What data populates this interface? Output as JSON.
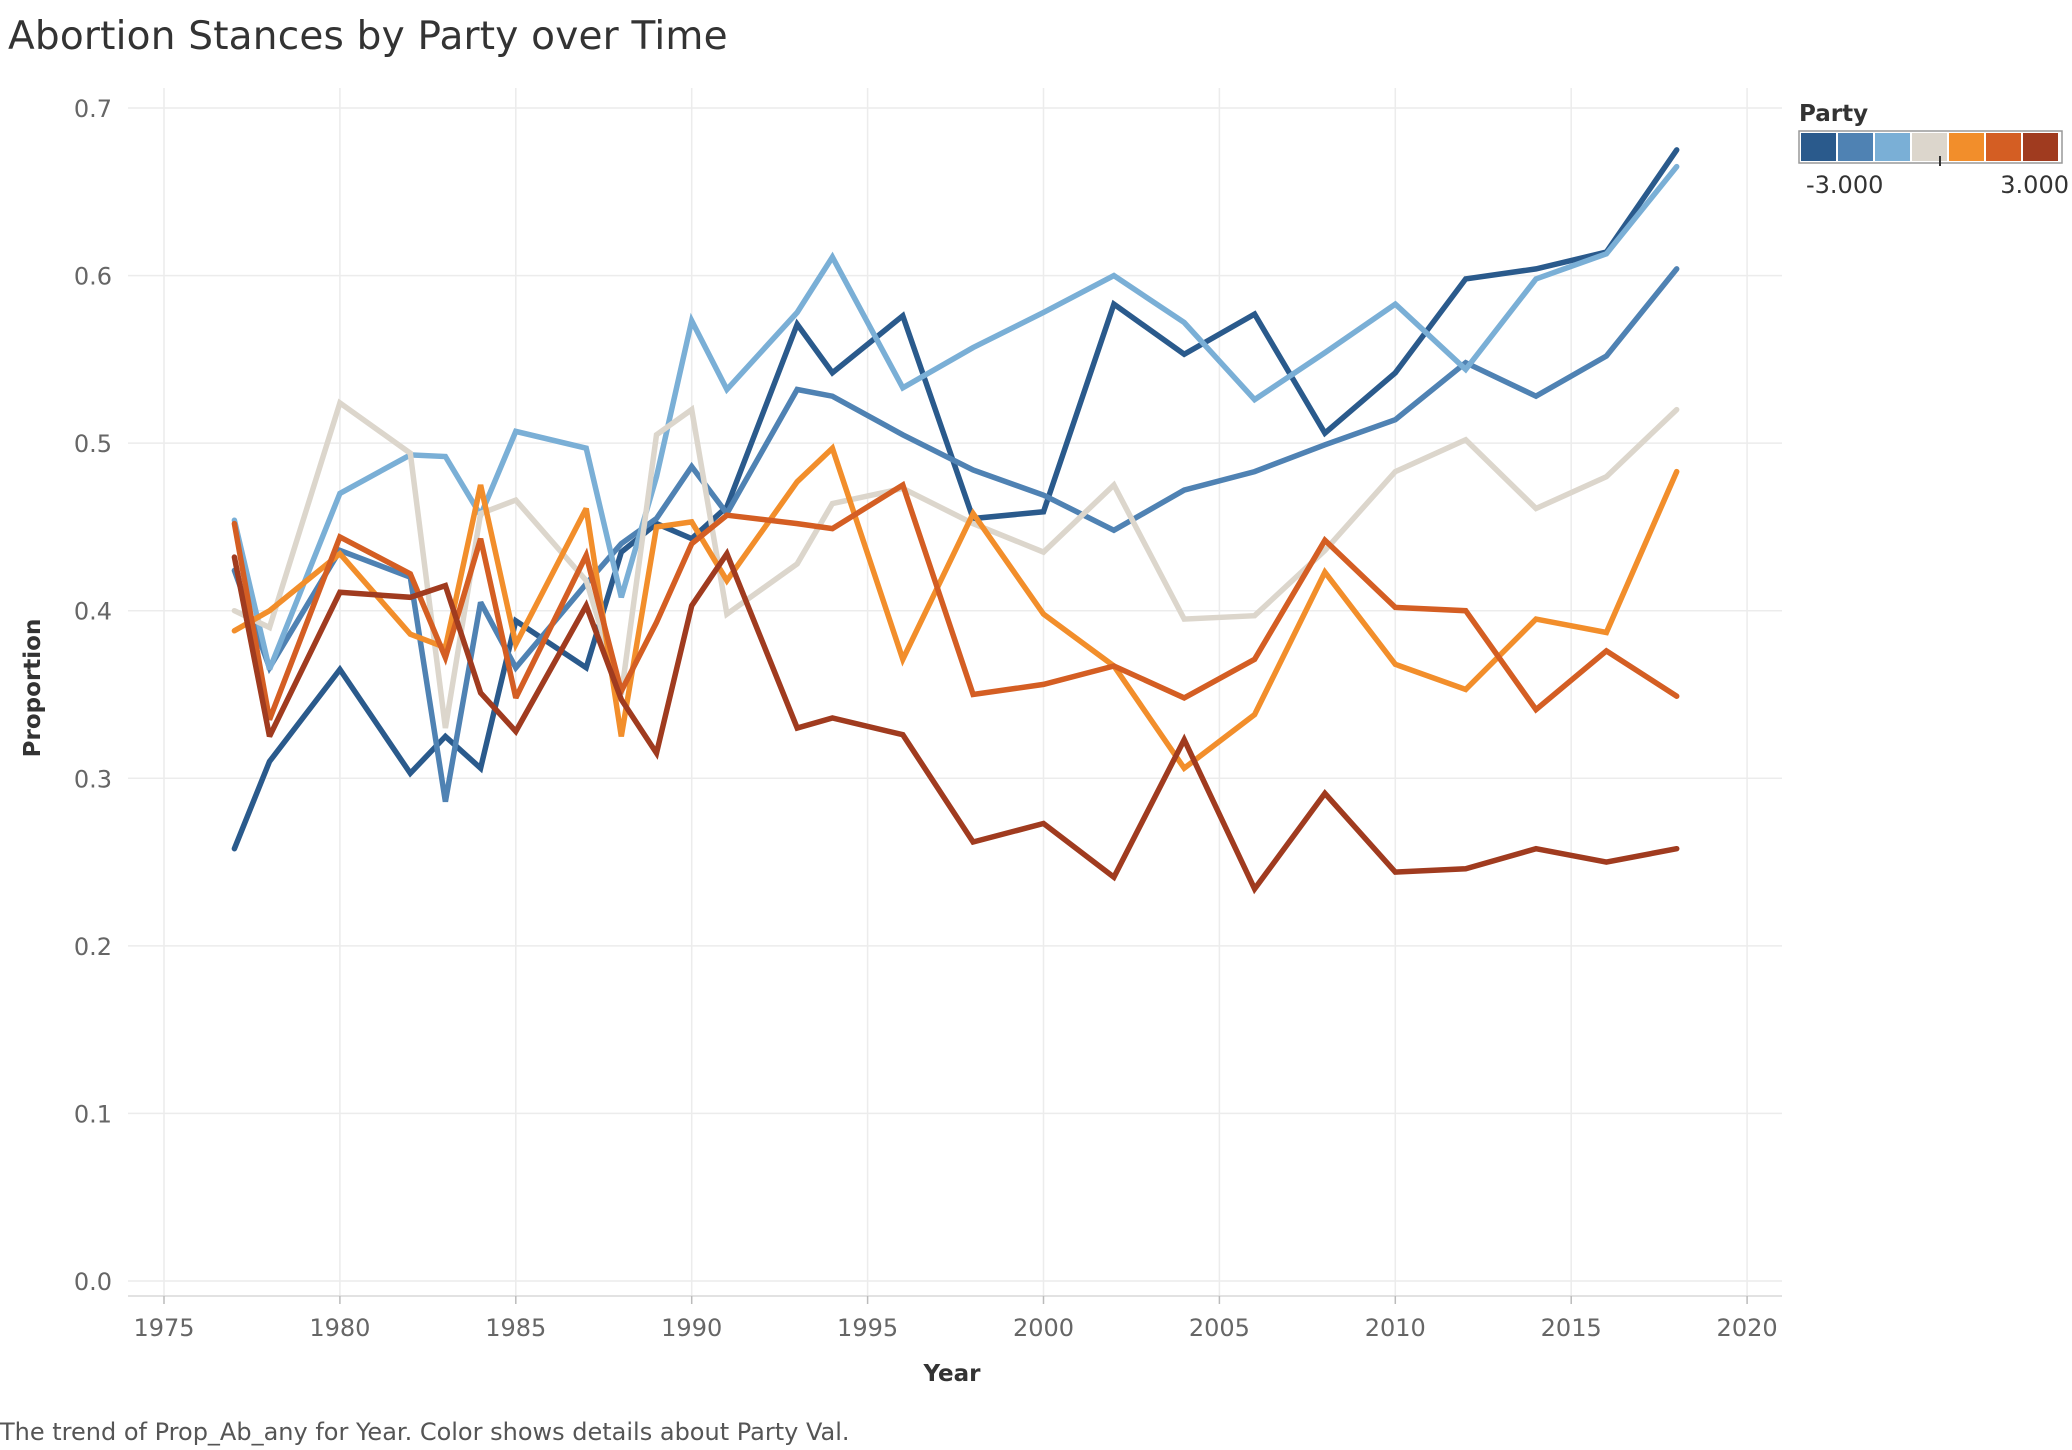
{
  "title": "Abortion Stances by Party over Time",
  "caption": "The trend of Prop_Ab_any for Year.  Color shows details about Party Val.",
  "chart_data": {
    "type": "line",
    "title": "Abortion Stances by Party over Time",
    "xlabel": "Year",
    "ylabel": "Proportion",
    "xlim": [
      1974,
      2021
    ],
    "ylim": [
      0,
      0.7
    ],
    "xticks": [
      "1975",
      "1980",
      "1985",
      "1990",
      "1995",
      "2000",
      "2005",
      "2010",
      "2015",
      "2020"
    ],
    "yticks": [
      "0.0",
      "0.1",
      "0.2",
      "0.3",
      "0.4",
      "0.5",
      "0.6",
      "0.7"
    ],
    "grid": true,
    "legend": {
      "title": "Party",
      "position": "top-right",
      "type": "color-scale",
      "min_label": "-3.000",
      "max_label": "3.000",
      "colors": [
        "#2a5a8c",
        "#4f82b3",
        "#7aafd6",
        "#dcd6cc",
        "#f28e2b",
        "#d45e23",
        "#a03b1f"
      ]
    },
    "series": [
      {
        "party_val": -3,
        "color": "#2a5a8c",
        "x": [
          1977,
          1978,
          1980,
          1982,
          1983,
          1984,
          1985,
          1987,
          1988,
          1989,
          1990,
          1991,
          1993,
          1994,
          1996,
          1998,
          2000,
          2002,
          2004,
          2006,
          2008,
          2010,
          2012,
          2014,
          2016,
          2018
        ],
        "values": [
          0.258,
          0.31,
          0.365,
          0.303,
          0.325,
          0.306,
          0.394,
          0.366,
          0.435,
          0.452,
          0.443,
          0.462,
          0.571,
          0.542,
          0.576,
          0.455,
          0.459,
          0.583,
          0.553,
          0.577,
          0.506,
          0.542,
          0.598,
          0.604,
          0.614,
          0.675
        ]
      },
      {
        "party_val": -2,
        "color": "#4f82b3",
        "x": [
          1977,
          1978,
          1980,
          1982,
          1983,
          1984,
          1985,
          1987,
          1988,
          1989,
          1990,
          1991,
          1993,
          1994,
          1996,
          1998,
          2000,
          2002,
          2004,
          2006,
          2008,
          2010,
          2012,
          2014,
          2016,
          2018
        ],
        "values": [
          0.424,
          0.366,
          0.436,
          0.42,
          0.286,
          0.405,
          0.366,
          0.416,
          0.44,
          0.455,
          0.486,
          0.458,
          0.532,
          0.528,
          0.505,
          0.484,
          0.469,
          0.448,
          0.472,
          0.483,
          0.499,
          0.514,
          0.548,
          0.528,
          0.552,
          0.604
        ]
      },
      {
        "party_val": -1,
        "color": "#7aafd6",
        "x": [
          1977,
          1978,
          1980,
          1982,
          1983,
          1984,
          1985,
          1987,
          1988,
          1989,
          1990,
          1991,
          1993,
          1994,
          1996,
          1998,
          2000,
          2002,
          2004,
          2006,
          2008,
          2010,
          2012,
          2014,
          2016,
          2018
        ],
        "values": [
          0.454,
          0.365,
          0.47,
          0.493,
          0.492,
          0.457,
          0.507,
          0.497,
          0.408,
          0.48,
          0.573,
          0.532,
          0.578,
          0.611,
          0.533,
          0.557,
          0.578,
          0.6,
          0.572,
          0.526,
          0.554,
          0.583,
          0.544,
          0.598,
          0.613,
          0.665
        ]
      },
      {
        "party_val": 0,
        "color": "#dcd6cc",
        "x": [
          1977,
          1978,
          1980,
          1982,
          1983,
          1984,
          1985,
          1987,
          1988,
          1989,
          1990,
          1991,
          1993,
          1994,
          1996,
          1998,
          2000,
          2002,
          2004,
          2006,
          2008,
          2010,
          2012,
          2014,
          2016,
          2018
        ],
        "values": [
          0.4,
          0.39,
          0.524,
          0.494,
          0.33,
          0.458,
          0.466,
          0.418,
          0.35,
          0.505,
          0.52,
          0.398,
          0.428,
          0.464,
          0.473,
          0.452,
          0.435,
          0.475,
          0.395,
          0.397,
          0.436,
          0.483,
          0.502,
          0.461,
          0.48,
          0.52
        ]
      },
      {
        "party_val": 1,
        "color": "#f28e2b",
        "x": [
          1977,
          1978,
          1980,
          1982,
          1983,
          1984,
          1985,
          1987,
          1988,
          1989,
          1990,
          1991,
          1993,
          1994,
          1996,
          1998,
          2000,
          2002,
          2004,
          2006,
          2008,
          2010,
          2012,
          2014,
          2016,
          2018
        ],
        "values": [
          0.388,
          0.4,
          0.434,
          0.386,
          0.378,
          0.475,
          0.38,
          0.461,
          0.325,
          0.45,
          0.453,
          0.418,
          0.477,
          0.497,
          0.371,
          0.458,
          0.398,
          0.367,
          0.306,
          0.338,
          0.423,
          0.368,
          0.353,
          0.395,
          0.387,
          0.483
        ]
      },
      {
        "party_val": 2,
        "color": "#d45e23",
        "x": [
          1977,
          1978,
          1980,
          1982,
          1983,
          1984,
          1985,
          1987,
          1988,
          1989,
          1990,
          1991,
          1993,
          1994,
          1996,
          1998,
          2000,
          2002,
          2004,
          2006,
          2008,
          2010,
          2012,
          2014,
          2016,
          2018
        ],
        "values": [
          0.452,
          0.335,
          0.444,
          0.422,
          0.372,
          0.443,
          0.348,
          0.433,
          0.352,
          0.393,
          0.44,
          0.457,
          0.452,
          0.449,
          0.475,
          0.35,
          0.356,
          0.367,
          0.348,
          0.371,
          0.442,
          0.402,
          0.4,
          0.341,
          0.376,
          0.349
        ]
      },
      {
        "party_val": 3,
        "color": "#a03b1f",
        "x": [
          1977,
          1978,
          1980,
          1982,
          1983,
          1984,
          1985,
          1987,
          1988,
          1989,
          1990,
          1991,
          1993,
          1994,
          1996,
          1998,
          2000,
          2002,
          2004,
          2006,
          2008,
          2010,
          2012,
          2014,
          2016,
          2018
        ],
        "values": [
          0.432,
          0.325,
          0.411,
          0.408,
          0.415,
          0.351,
          0.328,
          0.403,
          0.347,
          0.315,
          0.403,
          0.434,
          0.33,
          0.336,
          0.326,
          0.262,
          0.273,
          0.241,
          0.323,
          0.234,
          0.291,
          0.244,
          0.246,
          0.258,
          0.25,
          0.258
        ]
      }
    ]
  }
}
